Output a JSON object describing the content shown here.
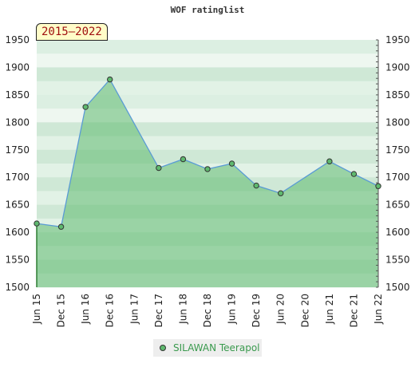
{
  "chart_data": {
    "type": "area",
    "title": "WOF ratinglist",
    "range_label": "2015–2022",
    "ylim": [
      1500,
      1950
    ],
    "y_ticks": [
      1500,
      1550,
      1600,
      1650,
      1700,
      1750,
      1800,
      1850,
      1900,
      1950
    ],
    "x_labels": [
      "Jun 15",
      "Dec 15",
      "Jun 16",
      "Dec 16",
      "Jun 17",
      "Dec 17",
      "Jun 18",
      "Dec 18",
      "Jun 19",
      "Dec 19",
      "Jun 20",
      "Dec 20",
      "Jun 21",
      "Dec 21",
      "Jun 22"
    ],
    "legend_position": "bottom",
    "grid": true,
    "series": [
      {
        "name": "SILAWAN Teerapol",
        "color": "#5fb96f",
        "line_color": "#5a9bd5",
        "points": [
          {
            "x": "Jun 15",
            "y": 1616
          },
          {
            "x": "Dec 15",
            "y": 1610
          },
          {
            "x": "Jun 16",
            "y": 1828
          },
          {
            "x": "Dec 16",
            "y": 1878
          },
          {
            "x": "Dec 17",
            "y": 1717
          },
          {
            "x": "Jun 18",
            "y": 1733
          },
          {
            "x": "Dec 18",
            "y": 1715
          },
          {
            "x": "Jun 19",
            "y": 1725
          },
          {
            "x": "Dec 19",
            "y": 1685
          },
          {
            "x": "Jun 20",
            "y": 1671
          },
          {
            "x": "Jun 21",
            "y": 1729
          },
          {
            "x": "Dec 21",
            "y": 1706
          },
          {
            "x": "Jun 22",
            "y": 1684
          }
        ]
      }
    ]
  }
}
